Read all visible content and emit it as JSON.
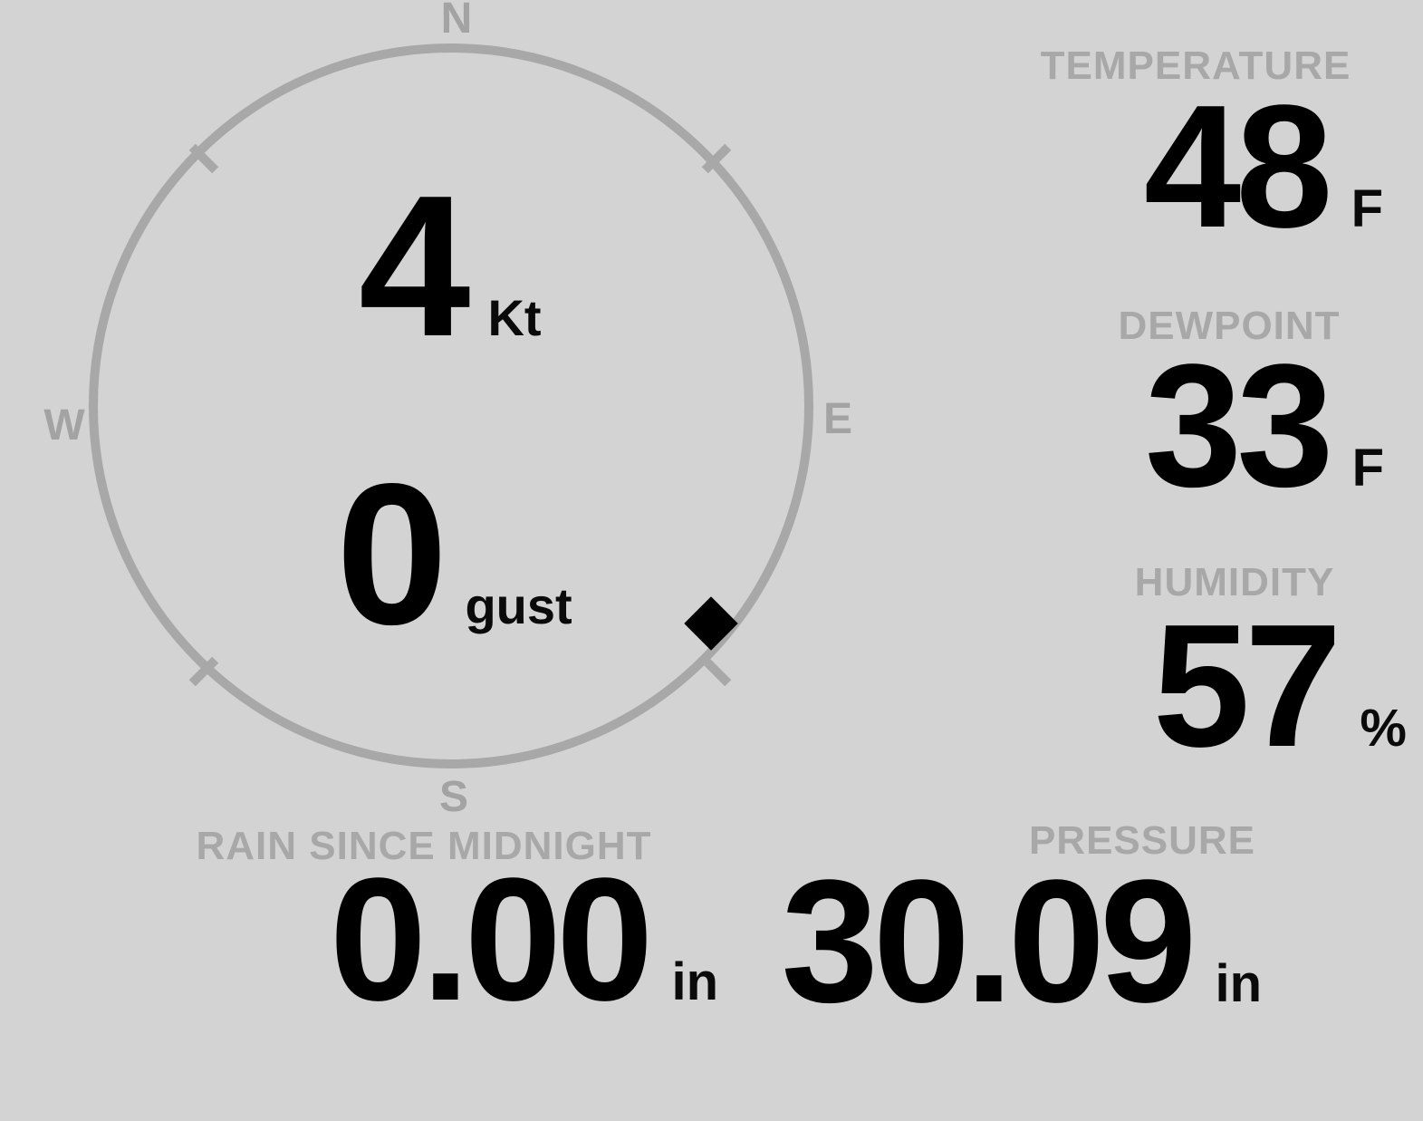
{
  "colors": {
    "background": "#d3d3d3",
    "ring_gray": "#a8a8a8",
    "label_gray": "#a3a3a3",
    "value_black": "#000000"
  },
  "compass": {
    "cardinals": {
      "north": "N",
      "east": "E",
      "south": "S",
      "west": "W"
    },
    "wind_speed": {
      "value": "4",
      "unit": "Kt"
    },
    "gust": {
      "value": "0",
      "unit": "gust"
    },
    "direction_deg": 130,
    "marker_icon": "diamond-icon"
  },
  "metrics": {
    "temperature": {
      "label": "TEMPERATURE",
      "value": "48",
      "unit": "F"
    },
    "dewpoint": {
      "label": "DEWPOINT",
      "value": "33",
      "unit": "F"
    },
    "humidity": {
      "label": "HUMIDITY",
      "value": "57",
      "unit": "%"
    },
    "rain": {
      "label": "RAIN SINCE MIDNIGHT",
      "value": "0.00",
      "unit": "in"
    },
    "pressure": {
      "label": "PRESSURE",
      "value": "30.09",
      "unit": "in"
    }
  }
}
